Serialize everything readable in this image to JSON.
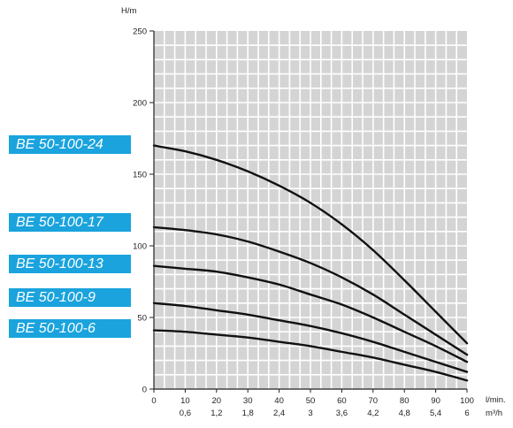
{
  "chart_data": {
    "type": "line",
    "title": "",
    "ylabel": "H/m",
    "xlabel": [
      "l/min.",
      "m³/h"
    ],
    "x_ticks_lmin": [
      "0",
      "10",
      "20",
      "30",
      "40",
      "50",
      "60",
      "70",
      "80",
      "90",
      "100"
    ],
    "x_ticks_m3h": [
      "",
      "0,6",
      "1,2",
      "1,8",
      "2,4",
      "3",
      "3,6",
      "4,2",
      "4,8",
      "5,4",
      "6"
    ],
    "y_ticks": [
      "0",
      "50",
      "100",
      "150",
      "200",
      "250"
    ],
    "xlim": [
      0,
      100
    ],
    "ylim": [
      0,
      250
    ],
    "grid": true,
    "x": [
      0,
      10,
      20,
      30,
      40,
      50,
      60,
      70,
      80,
      90,
      100
    ],
    "series": [
      {
        "name": "BE 50-100-24",
        "values": [
          170,
          166,
          160,
          152,
          142,
          130,
          115,
          97,
          76,
          54,
          32
        ]
      },
      {
        "name": "BE 50-100-17",
        "values": [
          113,
          111,
          108,
          103,
          96,
          88,
          78,
          66,
          52,
          38,
          24
        ]
      },
      {
        "name": "BE 50-100-13",
        "values": [
          86,
          84,
          82,
          78,
          73,
          66,
          59,
          50,
          40,
          30,
          19
        ]
      },
      {
        "name": "BE 50-100-9",
        "values": [
          60,
          58,
          55,
          52,
          48,
          44,
          39,
          33,
          26,
          19,
          12
        ]
      },
      {
        "name": "BE 50-100-6",
        "values": [
          41,
          40,
          38,
          36,
          33,
          30,
          26,
          22,
          17,
          12,
          6
        ]
      }
    ]
  },
  "labels": {
    "l24": "BE 50-100-24",
    "l17": "BE 50-100-17",
    "l13": "BE 50-100-13",
    "l9": "BE 50-100-9",
    "l6": "BE 50-100-6"
  }
}
